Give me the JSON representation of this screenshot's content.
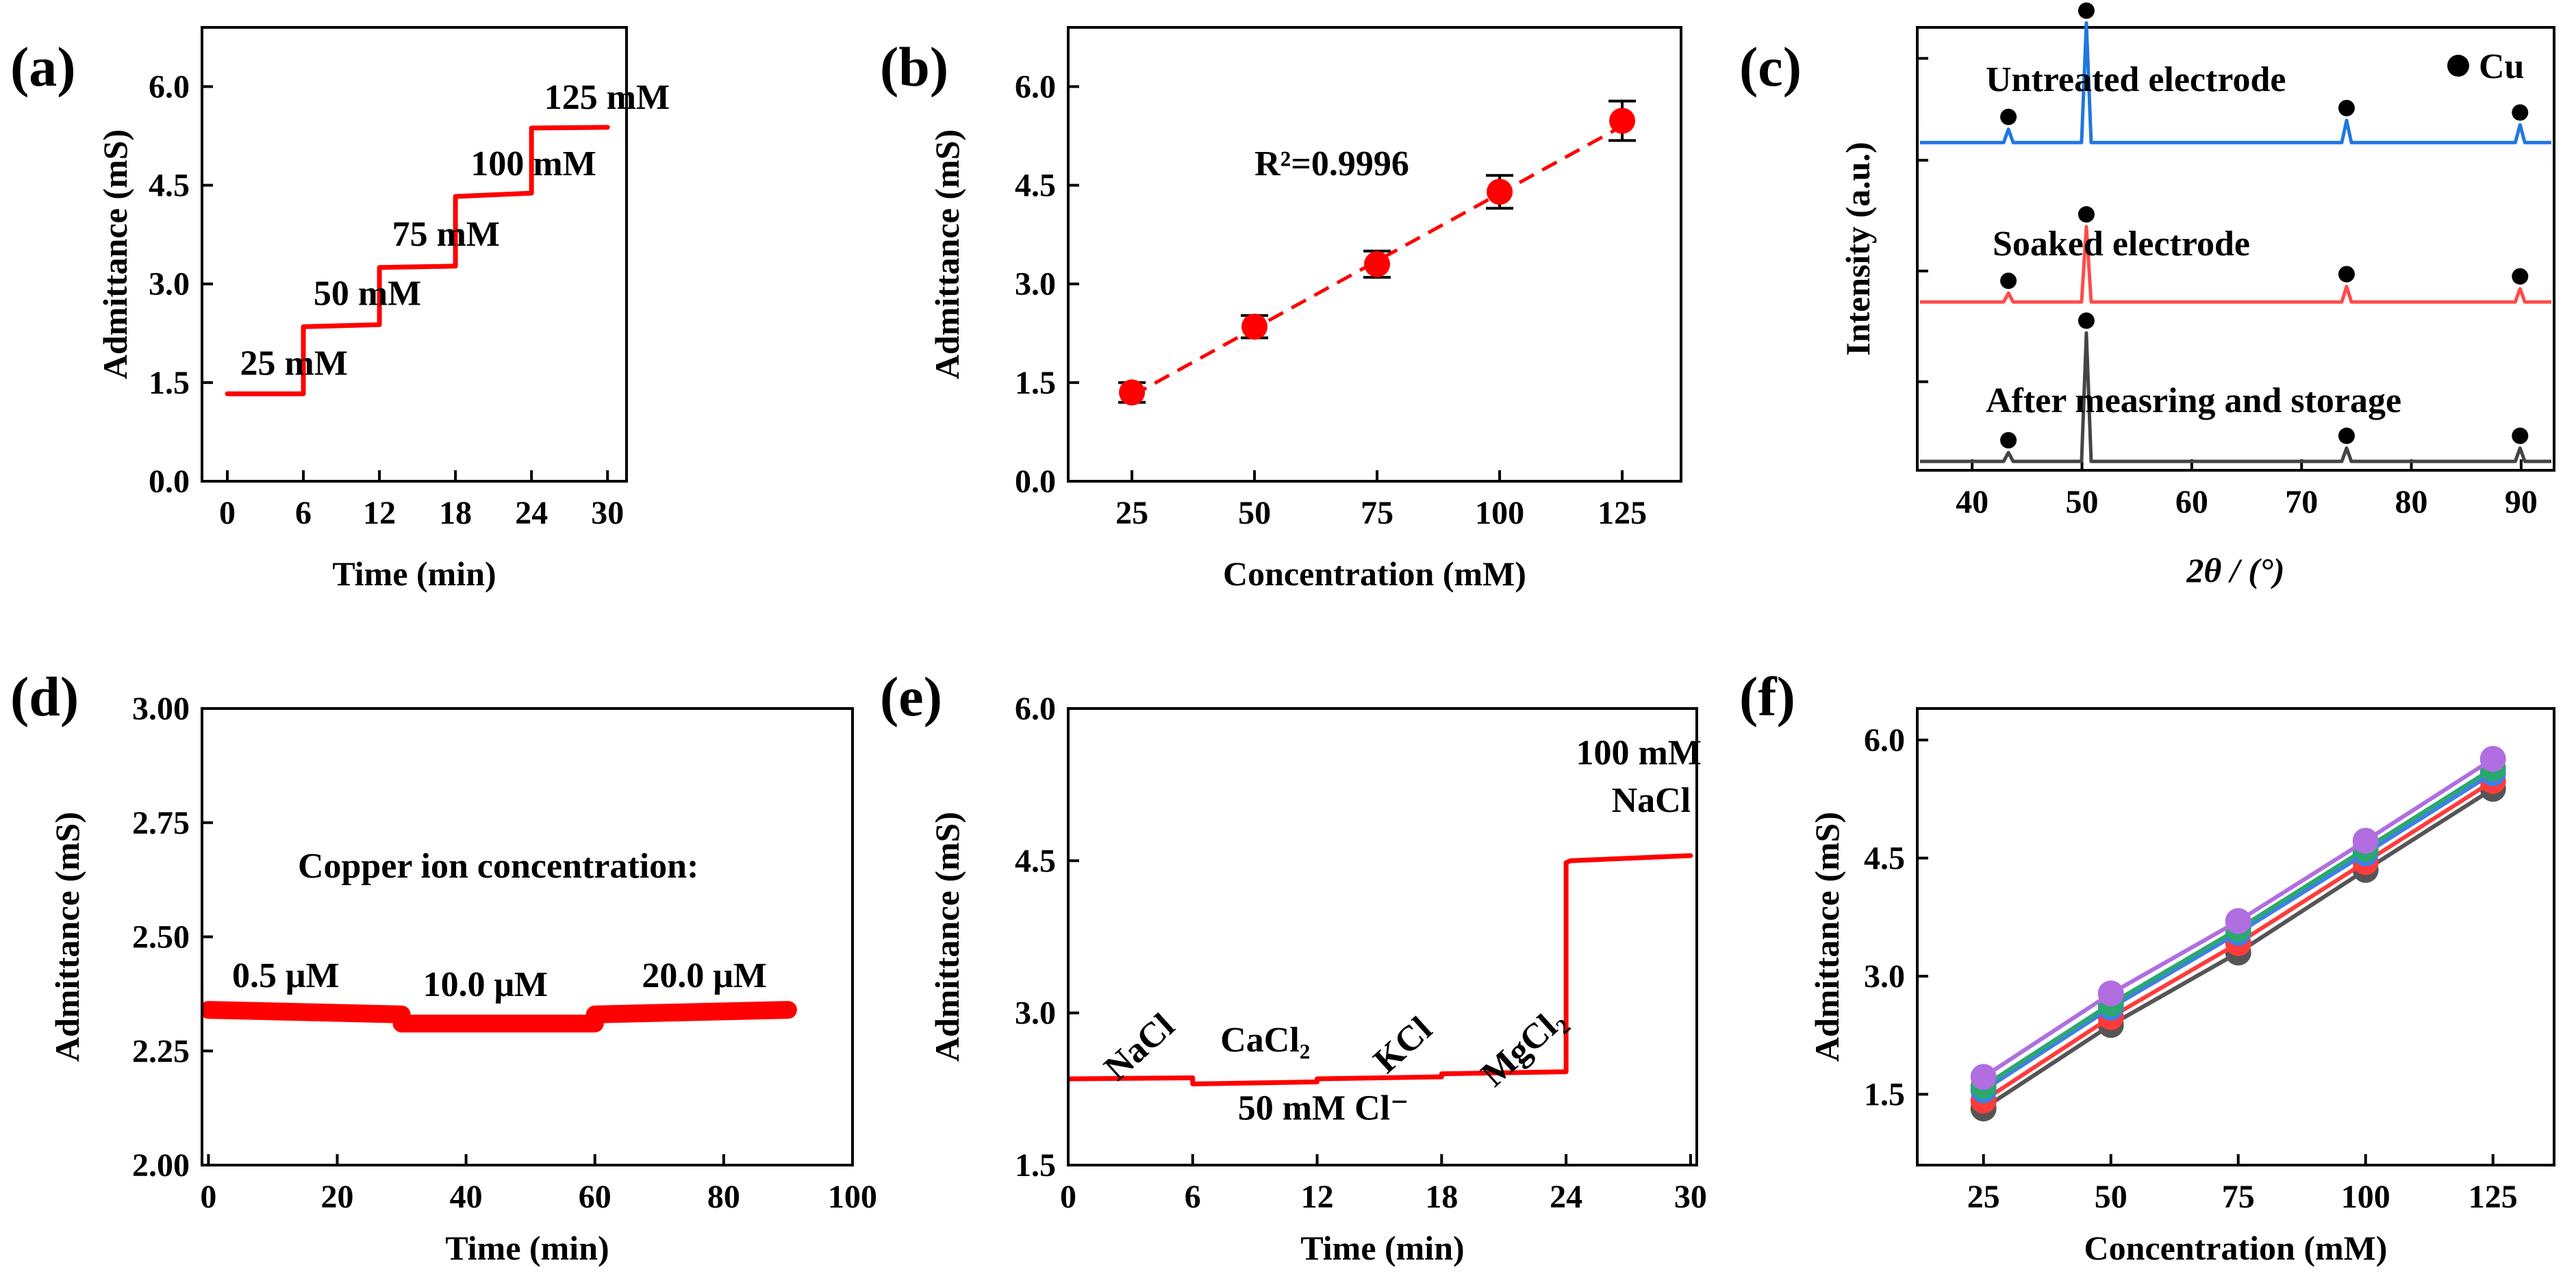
{
  "panels": [
    {
      "label": "(a)",
      "chart_data": {
        "type": "line",
        "xlabel": "Time (min)",
        "ylabel": "Admittance (mS)",
        "xlim": [
          -2,
          31.5
        ],
        "ylim": [
          0,
          6.9
        ],
        "xticks": [
          0,
          6,
          12,
          18,
          24,
          30
        ],
        "yticks": [
          0.0,
          1.5,
          3.0,
          4.5,
          6.0
        ],
        "ytick_labels": [
          "0.0",
          "1.5",
          "3.0",
          "4.5",
          "6.0"
        ],
        "series": [
          {
            "color": "#ff0000",
            "x": [
              0,
              6,
              6,
              12,
              12,
              18,
              18,
              24,
              24,
              30
            ],
            "y": [
              1.33,
              1.33,
              2.35,
              2.38,
              3.25,
              3.27,
              4.33,
              4.38,
              5.37,
              5.38
            ]
          }
        ],
        "annotations": [
          {
            "text": "25 mM",
            "x": 1.0,
            "y": 1.62
          },
          {
            "text": "50 mM",
            "x": 6.8,
            "y": 2.68
          },
          {
            "text": "75 mM",
            "x": 13.0,
            "y": 3.58
          },
          {
            "text": "100 mM",
            "x": 19.2,
            "y": 4.65
          },
          {
            "text": "125 mM",
            "x": 25.0,
            "y": 5.66
          }
        ]
      }
    },
    {
      "label": "(b)",
      "chart_data": {
        "type": "scatter",
        "xlabel": "Concentration (mM)",
        "ylabel": "Admittance (mS)",
        "xlim": [
          12,
          137
        ],
        "ylim": [
          0,
          6.9
        ],
        "xticks": [
          25,
          50,
          75,
          100,
          125
        ],
        "yticks": [
          0.0,
          1.5,
          3.0,
          4.5,
          6.0
        ],
        "ytick_labels": [
          "0.0",
          "1.5",
          "3.0",
          "4.5",
          "6.0"
        ],
        "series": [
          {
            "color": "#ff0000",
            "x": [
              25,
              50,
              75,
              100,
              125
            ],
            "y": [
              1.35,
              2.35,
              3.3,
              4.4,
              5.48
            ],
            "error": [
              0.15,
              0.17,
              0.2,
              0.25,
              0.3
            ]
          }
        ],
        "fit": {
          "x": [
            25,
            125
          ],
          "y": [
            1.3,
            5.4
          ],
          "style": "dashed",
          "color": "#ff0000"
        },
        "annotations": [
          {
            "text": "R²=0.9996",
            "x": 50,
            "y": 4.65
          }
        ]
      }
    },
    {
      "label": "(c)",
      "chart_data": {
        "type": "line",
        "xlabel": "2θ / (°)",
        "ylabel": "Intensity (a.u.)",
        "xlim": [
          35,
          93
        ],
        "xticks": [
          40,
          50,
          60,
          70,
          80,
          90
        ],
        "legend": {
          "marker": "●",
          "text": "Cu",
          "placement": "top-right"
        },
        "peaks_x": [
          43.3,
          50.4,
          74.1,
          89.9
        ],
        "series": [
          {
            "name": "Untreated electrode",
            "color": "#1f77e0",
            "offset": 0.74,
            "peak_heights": [
              0.03,
              0.27,
              0.05,
              0.04
            ]
          },
          {
            "name": "Soaked electrode",
            "color": "#ff4a4a",
            "offset": 0.38,
            "peak_heights": [
              0.02,
              0.17,
              0.035,
              0.03
            ]
          },
          {
            "name": "After measring and storage",
            "color": "#444444",
            "offset": 0.02,
            "peak_heights": [
              0.02,
              0.29,
              0.03,
              0.03
            ]
          }
        ]
      }
    },
    {
      "label": "(d)",
      "chart_data": {
        "type": "line",
        "xlabel": "Time (min)",
        "ylabel": "Admittance (mS)",
        "xlim": [
          -1,
          100
        ],
        "ylim": [
          2.0,
          3.0
        ],
        "xticks": [
          0,
          20,
          40,
          60,
          80,
          100
        ],
        "yticks": [
          2.0,
          2.25,
          2.5,
          2.75,
          3.0
        ],
        "ytick_labels": [
          "2.00",
          "2.25",
          "2.50",
          "2.75",
          "3.00"
        ],
        "series": [
          {
            "color": "#ff0000",
            "x": [
              0,
              30,
              30,
              60,
              60,
              90
            ],
            "y": [
              2.34,
              2.33,
              2.31,
              2.31,
              2.33,
              2.34
            ]
          }
        ],
        "annotations": [
          {
            "text": "Copper ion concentration:",
            "x": 45,
            "y": 2.63
          },
          {
            "text": "0.5 μM",
            "x": 12,
            "y": 2.39
          },
          {
            "text": "10.0 μM",
            "x": 43,
            "y": 2.37
          },
          {
            "text": "20.0 μM",
            "x": 77,
            "y": 2.39
          }
        ]
      }
    },
    {
      "label": "(e)",
      "chart_data": {
        "type": "line",
        "xlabel": "Time (min)",
        "ylabel": "Admittance (mS)",
        "xlim": [
          0,
          30.3
        ],
        "ylim": [
          1.5,
          6.0
        ],
        "xticks": [
          0,
          6,
          12,
          18,
          24,
          30
        ],
        "yticks": [
          1.5,
          3.0,
          4.5,
          6.0
        ],
        "ytick_labels": [
          "1.5",
          "3.0",
          "4.5",
          "6.0"
        ],
        "series": [
          {
            "color": "#ff0000",
            "x": [
              0,
              6,
              6,
              12,
              12,
              18,
              18,
              24,
              24,
              24.2,
              30
            ],
            "y": [
              2.35,
              2.36,
              2.3,
              2.32,
              2.35,
              2.37,
              2.4,
              2.42,
              4.48,
              4.5,
              4.55
            ]
          }
        ],
        "annotations": [
          {
            "text": "NaCl",
            "x": 3.8,
            "y": 2.58,
            "rotate": -42
          },
          {
            "text": "CaCl₂",
            "x": 9.5,
            "y": 2.62
          },
          {
            "text": "KCl",
            "x": 16.5,
            "y": 2.6,
            "rotate": -42
          },
          {
            "text": "MgCl₂",
            "x": 22.3,
            "y": 2.58,
            "rotate": -42
          },
          {
            "text": "50 mM Cl⁻",
            "x": 12.3,
            "y": 1.95
          },
          {
            "text": "100 mM",
            "x": 27.5,
            "y": 5.45
          },
          {
            "text": "NaCl",
            "x": 28.1,
            "y": 4.98
          }
        ]
      }
    },
    {
      "label": "(f)",
      "chart_data": {
        "type": "line",
        "xlabel": "Concentration (mM)",
        "ylabel": "Admittance (mS)",
        "xlim": [
          12,
          137
        ],
        "ylim": [
          0.6,
          6.4
        ],
        "xticks": [
          25,
          50,
          75,
          100,
          125
        ],
        "yticks": [
          1.5,
          3.0,
          4.5,
          6.0
        ],
        "ytick_labels": [
          "1.5",
          "3.0",
          "4.5",
          "6.0"
        ],
        "x": [
          25,
          50,
          75,
          100,
          125
        ],
        "series": [
          {
            "color": "#555555",
            "values": [
              1.32,
              2.38,
              3.3,
              4.35,
              5.38
            ]
          },
          {
            "color": "#ff3b3b",
            "values": [
              1.42,
              2.48,
              3.42,
              4.45,
              5.48
            ]
          },
          {
            "color": "#3f7fe8",
            "values": [
              1.55,
              2.6,
              3.55,
              4.56,
              5.58
            ]
          },
          {
            "color": "#2aa86e",
            "values": [
              1.6,
              2.65,
              3.6,
              4.62,
              5.64
            ]
          },
          {
            "color": "#b06ee0",
            "values": [
              1.72,
              2.78,
              3.7,
              4.72,
              5.76
            ]
          }
        ]
      }
    }
  ]
}
